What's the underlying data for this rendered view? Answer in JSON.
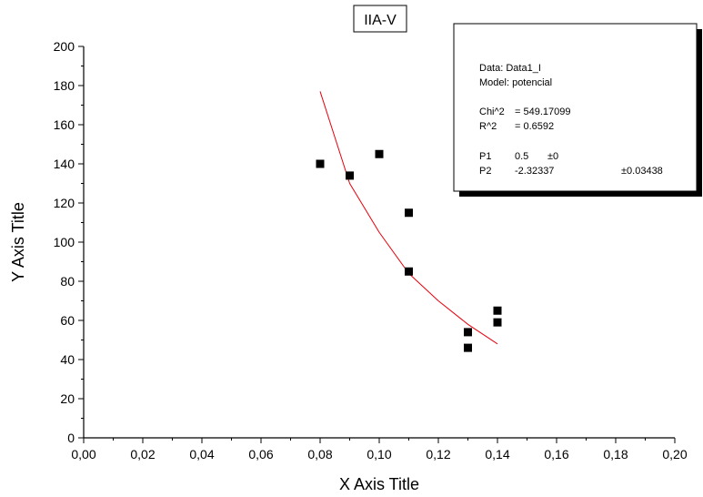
{
  "chart_data": {
    "type": "scatter",
    "title": "IIA-V",
    "xlabel": "X Axis Title",
    "ylabel": "Y Axis Title",
    "xlim": [
      0,
      0.2
    ],
    "ylim": [
      0,
      200
    ],
    "x_ticks": [
      "0,00",
      "0,02",
      "0,04",
      "0,06",
      "0,08",
      "0,10",
      "0,12",
      "0,14",
      "0,16",
      "0,18",
      "0,20"
    ],
    "y_ticks": [
      "0",
      "20",
      "40",
      "60",
      "80",
      "100",
      "120",
      "140",
      "160",
      "180",
      "200"
    ],
    "points": [
      {
        "x": 0.08,
        "y": 140
      },
      {
        "x": 0.09,
        "y": 134
      },
      {
        "x": 0.1,
        "y": 145
      },
      {
        "x": 0.11,
        "y": 115
      },
      {
        "x": 0.11,
        "y": 85
      },
      {
        "x": 0.13,
        "y": 54
      },
      {
        "x": 0.13,
        "y": 46
      },
      {
        "x": 0.14,
        "y": 65
      },
      {
        "x": 0.14,
        "y": 59
      }
    ],
    "fit_curve": {
      "color": "#e8000b",
      "points": [
        {
          "x": 0.08,
          "y": 177
        },
        {
          "x": 0.09,
          "y": 130
        },
        {
          "x": 0.1,
          "y": 105
        },
        {
          "x": 0.11,
          "y": 84
        },
        {
          "x": 0.12,
          "y": 70
        },
        {
          "x": 0.13,
          "y": 58
        },
        {
          "x": 0.14,
          "y": 48
        }
      ]
    },
    "grid": false,
    "legend_position": "top-right",
    "stats_box": {
      "data_label": "Data: Data1_I",
      "model_label": "Model: potencial",
      "chi2_label": "Chi^2",
      "chi2_value": "= 549.17099",
      "r2_label": "R^2",
      "r2_value": "= 0.6592",
      "p1_label": "P1",
      "p1_value": "0.5",
      "p1_error": "±0",
      "p2_label": "P2",
      "p2_value": "-2.32337",
      "p2_error": "±0.03438"
    }
  }
}
